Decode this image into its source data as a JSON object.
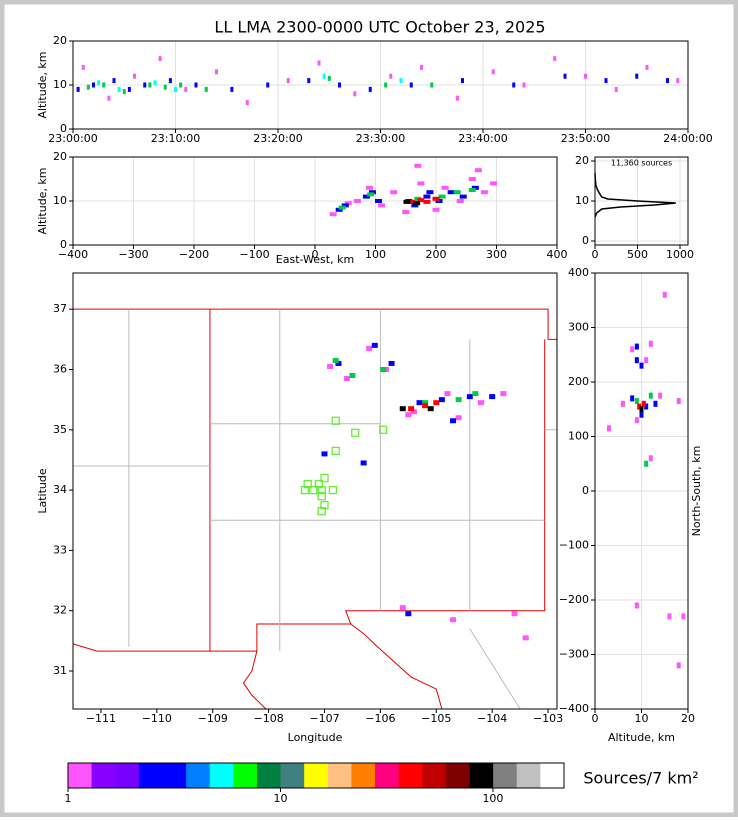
{
  "chart_data": [
    {
      "type": "scatter",
      "title": "LL LMA 2300-0000 UTC October 23, 2025",
      "ylabel": "Altitude, km",
      "xlim": [
        "23:00:00",
        "24:00:00"
      ],
      "xticks": [
        "23:00:00",
        "23:10:00",
        "23:20:00",
        "23:30:00",
        "23:40:00",
        "23:50:00",
        "24:00:00"
      ],
      "ylim": [
        0,
        20
      ],
      "yticks": [
        0,
        10,
        20
      ],
      "grid": true,
      "series": [
        {
          "color": "#ff55ff",
          "x": [
            "23:01:00",
            "23:03:30",
            "23:06:00",
            "23:08:30",
            "23:11:00",
            "23:14:00",
            "23:17:00",
            "23:21:00",
            "23:24:00",
            "23:27:30",
            "23:31:00",
            "23:34:00",
            "23:37:30",
            "23:41:00",
            "23:44:00",
            "23:47:00",
            "23:50:00",
            "23:53:00",
            "23:56:00",
            "23:59:00"
          ],
          "y": [
            14,
            7,
            12,
            16,
            9,
            13,
            6,
            11,
            15,
            8,
            12,
            14,
            7,
            13,
            10,
            16,
            12,
            9,
            14,
            11
          ]
        },
        {
          "color": "#0000ff",
          "x": [
            "23:00:30",
            "23:02:00",
            "23:04:00",
            "23:05:30",
            "23:07:00",
            "23:09:30",
            "23:12:00",
            "23:15:30",
            "23:19:00",
            "23:23:00",
            "23:26:00",
            "23:29:00",
            "23:33:00",
            "23:38:00",
            "23:43:00",
            "23:48:00",
            "23:52:00",
            "23:55:00",
            "23:58:00"
          ],
          "y": [
            9,
            10,
            11,
            9,
            10,
            11,
            10,
            9,
            10,
            11,
            10,
            9,
            10,
            11,
            10,
            12,
            11,
            12,
            11
          ]
        },
        {
          "color": "#00cc44",
          "x": [
            "23:01:30",
            "23:03:00",
            "23:05:00",
            "23:07:30",
            "23:09:00",
            "23:10:30",
            "23:13:00",
            "23:25:00",
            "23:30:30",
            "23:35:00"
          ],
          "y": [
            9.5,
            10,
            8.5,
            10,
            9.5,
            10,
            9,
            11.5,
            10,
            10
          ]
        },
        {
          "color": "#00ffff",
          "x": [
            "23:02:30",
            "23:04:30",
            "23:08:00",
            "23:10:00",
            "23:24:30",
            "23:32:00"
          ],
          "y": [
            10.5,
            9,
            10.5,
            9,
            12,
            11
          ]
        }
      ]
    },
    {
      "type": "scatter",
      "xlabel": "East-West, km",
      "ylabel": "Altitude, km",
      "xlim": [
        -400,
        400
      ],
      "xticks": [
        {
          "value": -400,
          "label": "−400"
        },
        {
          "value": -300,
          "label": "−300"
        },
        {
          "value": -200,
          "label": "−200"
        },
        {
          "value": -100,
          "label": "−100"
        },
        0,
        100,
        200,
        300,
        400
      ],
      "ylim": [
        0,
        20
      ],
      "yticks": [
        0,
        10,
        20
      ],
      "grid": true,
      "series": [
        {
          "color": "#ff55ff",
          "x": [
            30,
            55,
            70,
            90,
            110,
            130,
            150,
            175,
            200,
            215,
            240,
            260,
            280,
            295,
            170,
            270
          ],
          "y": [
            7,
            9.5,
            10,
            13,
            9,
            12,
            7.5,
            14,
            8,
            13,
            10,
            15,
            12,
            14,
            18,
            17
          ]
        },
        {
          "color": "#0000ff",
          "x": [
            40,
            50,
            85,
            95,
            105,
            155,
            165,
            185,
            205,
            225,
            245,
            265,
            190
          ],
          "y": [
            8,
            9,
            11,
            12,
            10,
            10,
            9,
            11,
            10,
            12,
            11,
            13,
            12
          ]
        },
        {
          "color": "#00cc44",
          "x": [
            45,
            92,
            170,
            210,
            235,
            260
          ],
          "y": [
            8.5,
            11.5,
            10.5,
            11,
            12,
            12.5
          ]
        },
        {
          "color": "#ff0000",
          "x": [
            160,
            175,
            185,
            200
          ],
          "y": [
            9.8,
            10.2,
            9.8,
            10.5
          ]
        },
        {
          "color": "#000000",
          "x": [
            152,
            168
          ],
          "y": [
            9.8,
            9.5
          ]
        }
      ]
    },
    {
      "type": "line",
      "annotation": "11,360 sources",
      "xlim": [
        0,
        1094
      ],
      "xticks": [
        0,
        500,
        1000
      ],
      "ylim": [
        -1,
        21
      ],
      "yticks": [
        0,
        10,
        20
      ],
      "grid": true,
      "color": "#000000",
      "x": [
        0,
        20,
        80,
        300,
        700,
        950,
        500,
        150,
        80,
        50,
        25,
        10,
        5,
        2,
        0
      ],
      "y": [
        6,
        7,
        8,
        8.5,
        9,
        9.5,
        10,
        10.5,
        11,
        12,
        13,
        14,
        15,
        16,
        17
      ]
    },
    {
      "type": "map",
      "xlabel": "Longitude",
      "ylabel": "Latitude",
      "xlim": [
        -111.5,
        -102.84
      ],
      "xticks": [
        {
          "value": -111,
          "label": "−111"
        },
        {
          "value": -110,
          "label": "−110"
        },
        {
          "value": -109,
          "label": "−109"
        },
        {
          "value": -108,
          "label": "−108"
        },
        {
          "value": -107,
          "label": "−107"
        },
        {
          "value": -106,
          "label": "−106"
        },
        {
          "value": -105,
          "label": "−105"
        },
        {
          "value": -104,
          "label": "−104"
        },
        {
          "value": -103,
          "label": "−103"
        }
      ],
      "ylim": [
        30.37,
        37.6
      ],
      "yticks": [
        31,
        32,
        33,
        34,
        35,
        36,
        37
      ],
      "grid": false,
      "series": [
        {
          "color": "#ff55ff",
          "x": [
            -106.9,
            -106.2,
            -105.9,
            -105.4,
            -104.8,
            -104.2,
            -103.8,
            -105.5,
            -106.6,
            -104.6,
            -105.6,
            -104.7,
            -103.6,
            -103.4
          ],
          "y": [
            36.05,
            36.35,
            36.0,
            35.3,
            35.6,
            35.45,
            35.6,
            35.25,
            35.85,
            35.2,
            32.05,
            31.85,
            31.95,
            31.55
          ]
        },
        {
          "color": "#0000ff",
          "x": [
            -106.75,
            -106.1,
            -105.8,
            -105.3,
            -104.9,
            -104.4,
            -104.0,
            -104.7,
            -106.3,
            -107.0,
            -105.5
          ],
          "y": [
            36.1,
            36.4,
            36.1,
            35.45,
            35.5,
            35.55,
            35.55,
            35.15,
            34.45,
            34.6,
            31.95
          ]
        },
        {
          "color": "#00cc44",
          "x": [
            -106.8,
            -105.95,
            -105.2,
            -104.6,
            -104.3,
            -106.5
          ],
          "y": [
            36.15,
            36.0,
            35.45,
            35.5,
            35.6,
            35.9
          ]
        },
        {
          "color": "#ff0000",
          "x": [
            -105.45,
            -105.2,
            -105.0
          ],
          "y": [
            35.35,
            35.4,
            35.45
          ]
        },
        {
          "color": "#000000",
          "x": [
            -105.6,
            -105.1
          ],
          "y": [
            35.35,
            35.35
          ]
        },
        {
          "color": "#66ee33",
          "marker": "square-open",
          "x": [
            -106.8,
            -106.45,
            -105.95,
            -106.8,
            -107.0,
            -107.1,
            -107.3,
            -107.35,
            -107.2,
            -107.05,
            -106.85,
            -107.05,
            -107.0,
            -107.05
          ],
          "y": [
            35.15,
            34.95,
            35.0,
            34.65,
            34.2,
            34.1,
            34.1,
            34.0,
            34.0,
            34.0,
            34.0,
            33.9,
            33.75,
            33.65
          ]
        }
      ]
    },
    {
      "type": "scatter",
      "xlabel": "Altitude, km",
      "ylabel": "North-South, km",
      "xlim": [
        0,
        20
      ],
      "xticks": [
        0,
        10,
        20
      ],
      "ylim": [
        -400,
        400
      ],
      "yticks": [
        {
          "value": -400,
          "label": "−400"
        },
        {
          "value": -300,
          "label": "−300"
        },
        {
          "value": -200,
          "label": "−200"
        },
        {
          "value": -100,
          "label": "−100"
        },
        0,
        100,
        200,
        300,
        400
      ],
      "grid": true,
      "series": [
        {
          "color": "#ff55ff",
          "x": [
            8,
            11,
            6,
            14,
            18,
            9,
            12,
            3,
            16,
            19,
            9,
            18,
            15,
            12
          ],
          "y": [
            260,
            240,
            160,
            175,
            165,
            130,
            60,
            115,
            -230,
            -230,
            -210,
            -320,
            360,
            270
          ]
        },
        {
          "color": "#0000ff",
          "x": [
            9,
            10,
            8,
            11,
            13,
            10,
            9
          ],
          "y": [
            240,
            230,
            170,
            155,
            160,
            140,
            265
          ]
        },
        {
          "color": "#00cc44",
          "x": [
            9,
            12,
            10,
            11
          ],
          "y": [
            165,
            175,
            150,
            50
          ]
        },
        {
          "color": "#ff0000",
          "x": [
            9.5,
            10.5
          ],
          "y": [
            155,
            160
          ]
        },
        {
          "color": "#000000",
          "x": [
            10
          ],
          "y": [
            150
          ]
        }
      ]
    },
    {
      "type": "colorbar",
      "label": "Sources/7 km²",
      "log": true,
      "xlim": [
        1,
        216
      ],
      "xticks": [
        1,
        10,
        100
      ],
      "colors": [
        "#ff55ff",
        "#8800ff",
        "#7700ff",
        "#0000ff",
        "#0000ff",
        "#0080ff",
        "#00ffff",
        "#00ff00",
        "#008040",
        "#408080",
        "#ffff00",
        "#ffc080",
        "#ff8000",
        "#ff0080",
        "#ff0000",
        "#c00000",
        "#800000",
        "#000000",
        "#808080",
        "#c0c0c0",
        "#ffffff"
      ]
    }
  ]
}
